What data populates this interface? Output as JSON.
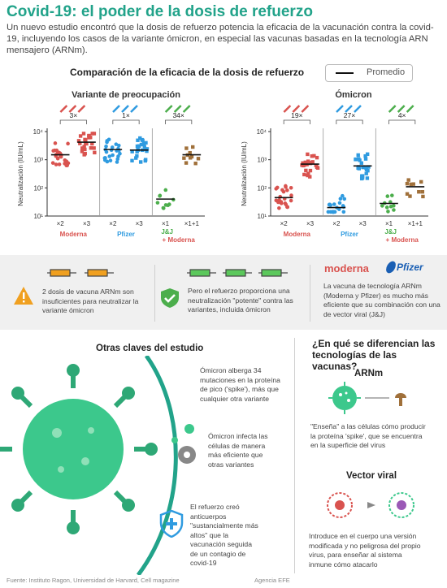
{
  "header": {
    "title": "Covid-19: el poder de la dosis de refuerzo",
    "subtitle": "Un nuevo estudio encontró que la dosis de refuerzo potencia la eficacia de la vacunación contra la covid-19, incluyendo los casos de la variante ómicron, en especial las vacunas basadas en la tecnología ARN mensajero (ARNm)."
  },
  "comparison": {
    "title": "Comparación de la eficacia de la dosis de refuerzo",
    "legend_label": "Promedio"
  },
  "colors": {
    "moderna": "#d9534f",
    "pfizer": "#2f9be0",
    "jj": "#4cae4c",
    "brown": "#a0703a",
    "accent": "#22a38a"
  },
  "chart_data": [
    {
      "type": "scatter",
      "title": "Variante de preocupación",
      "ylabel": "Neutralización (IU/mL)",
      "ylog": true,
      "ylim": [
        10,
        10000
      ],
      "yticks": [
        "10¹",
        "10²",
        "10³",
        "10⁴"
      ],
      "groups": [
        "×2",
        "×3",
        "×2",
        "×3",
        "×1",
        "×1+1"
      ],
      "group_labels": [
        "Moderna",
        "Pfizer",
        "J&J + Moderna"
      ],
      "fold_changes": [
        "3×",
        "1×",
        "34×"
      ],
      "means": [
        1500,
        4200,
        2300,
        2200,
        40,
        1500
      ]
    },
    {
      "type": "scatter",
      "title": "Ómicron",
      "ylabel": "Neutralización (IU/mL)",
      "ylog": true,
      "ylim": [
        10,
        10000
      ],
      "yticks": [
        "10¹",
        "10²",
        "10³",
        "10⁴"
      ],
      "groups": [
        "×2",
        "×3",
        "×2",
        "×3",
        "×1",
        "×1+1"
      ],
      "group_labels": [
        "Moderna",
        "Pfizer",
        "J&J + Moderna"
      ],
      "fold_changes": [
        "19×",
        "27×",
        "4×"
      ],
      "means": [
        45,
        700,
        20,
        600,
        28,
        110
      ]
    }
  ],
  "band": {
    "left_text": "2 dosis de vacuna ARNm son insuficientes para neutralizar la variante ómicron",
    "mid_text": "Pero el refuerzo proporciona una neutralización \"potente\" contra las variantes, incluida ómicron",
    "right_text": "La vacuna de tecnología ARNm (Moderna y Pfizer) es mucho más eficiente que su combinación con una de vector viral (J&J)",
    "moderna_logo": "moderna",
    "pfizer_logo": "Pfizer"
  },
  "claves": {
    "title": "Otras claves del estudio",
    "item1": "Ómicron alberga 34 mutaciones en la proteína de pico ('spike'), más que cualquier otra variante",
    "item2": "Ómicron infecta las células de manera más eficiente que otras variantes",
    "item3": "El refuerzo creó anticuerpos \"sustancialmente más altos\" que la vacunación seguida de un contagio de covid-19"
  },
  "differences": {
    "title": "¿En qué se diferencian las tecnologías de las vacunas?",
    "arnm_title": "ARNm",
    "arnm_text": "\"Enseña\" a las células cómo producir la proteína 'spike', que se encuentra en la superficie del virus",
    "vector_title": "Vector viral",
    "vector_text": "Introduce en el cuerpo una versión modificada y no peligrosa del propio virus, para enseñar al sistema inmune cómo atacarlo"
  },
  "footer": {
    "source": "Fuente: Instituto Ragon, Universidad de Harvard, Cell magazine",
    "credit": "Agencia EFE"
  }
}
